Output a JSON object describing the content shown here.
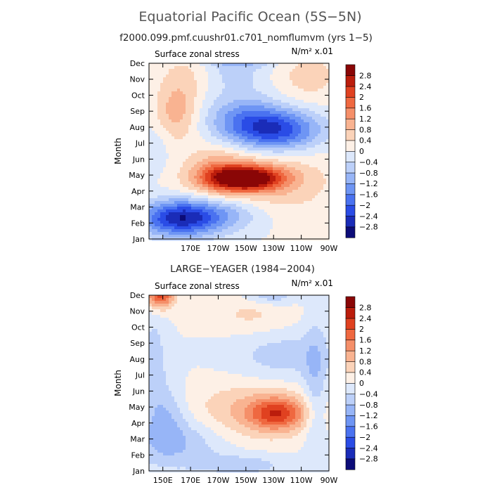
{
  "page": {
    "title": "Equatorial Pacific Ocean (5S−5N)",
    "case_name": "f2000.099.pmf.cuushr01.c701_nomflumvm (yrs 1−5)"
  },
  "palette": {
    "bounds": [
      -2.8,
      -2.4,
      -2,
      -1.6,
      -1.2,
      -0.8,
      -0.4,
      0,
      0.4,
      0.8,
      1.2,
      1.6,
      2,
      2.4,
      2.8
    ],
    "colors": [
      "#0c0c78",
      "#1a2cb8",
      "#2a4ce6",
      "#4a72f0",
      "#6e95f4",
      "#97b5f7",
      "#bcd0f9",
      "#dde8fb",
      "#fdf0e6",
      "#fbd3b9",
      "#f9b391",
      "#f58f69",
      "#ef6840",
      "#e04120",
      "#bb1d0c",
      "#8a0606"
    ],
    "labels": [
      "−2.8",
      "−2.4",
      "−2",
      "−1.6",
      "−1.2",
      "−0.8",
      "−0.4",
      "0",
      "0.4",
      "0.8",
      "1.2",
      "1.6",
      "2",
      "2.4",
      "2.8"
    ]
  },
  "chart_data": [
    {
      "type": "heatmap",
      "panel_title": "",
      "left_label": "Surface zonal stress",
      "right_label": "N/m² x.01",
      "ylabel": "Month",
      "x_ticks": [
        "",
        "170E",
        "170W",
        "150W",
        "130W",
        "110W",
        "90W"
      ],
      "x_tick_lon": [
        150,
        170,
        190,
        210,
        230,
        250,
        270
      ],
      "y_ticks": [
        "Jan",
        "Feb",
        "Mar",
        "Apr",
        "May",
        "Jun",
        "Jul",
        "Aug",
        "Sep",
        "Oct",
        "Nov",
        "Dec"
      ],
      "xlim_lon": [
        140,
        270
      ],
      "features": [
        {
          "lon": 210,
          "month": 3.8,
          "value": 3.1,
          "sx": 19,
          "sy": 0.55
        },
        {
          "lon": 220,
          "month": 3.5,
          "value": 0.8,
          "sx": 38,
          "sy": 1.6
        },
        {
          "lon": 190,
          "month": 4.2,
          "value": 0.8,
          "sx": 14,
          "sy": 1.0
        },
        {
          "lon": 162,
          "month": 1.3,
          "value": -2.6,
          "sx": 20,
          "sy": 0.8
        },
        {
          "lon": 195,
          "month": 1.6,
          "value": -1.0,
          "sx": 22,
          "sy": 0.8
        },
        {
          "lon": 231,
          "month": 6.8,
          "value": -2.3,
          "sx": 23,
          "sy": 0.9
        },
        {
          "lon": 208,
          "month": 7.7,
          "value": -1.0,
          "sx": 20,
          "sy": 1.0
        },
        {
          "lon": 200,
          "month": 10.5,
          "value": -0.6,
          "sx": 18,
          "sy": 1.0
        },
        {
          "lon": 205,
          "month": 11.3,
          "value": -0.9,
          "sx": 20,
          "sy": 0.35
        },
        {
          "lon": 160,
          "month": 8.0,
          "value": 1.0,
          "sx": 11,
          "sy": 1.3
        },
        {
          "lon": 255,
          "month": 10.2,
          "value": 0.6,
          "sx": 18,
          "sy": 1.2
        },
        {
          "lon": 170,
          "month": 10.5,
          "value": 0.5,
          "sx": 15,
          "sy": 1.2
        },
        {
          "lon": 145,
          "month": 5.5,
          "value": -0.35,
          "sx": 8,
          "sy": 1.2
        }
      ]
    },
    {
      "type": "heatmap",
      "panel_title": "LARGE−YEAGER (1984−2004)",
      "left_label": "Surface zonal stress",
      "right_label": "N/m² x.01",
      "ylabel": "Month",
      "x_ticks": [
        "150E",
        "170E",
        "170W",
        "150W",
        "130W",
        "110W",
        "90W"
      ],
      "x_tick_lon": [
        150,
        170,
        190,
        210,
        230,
        250,
        270
      ],
      "y_ticks": [
        "Jan",
        "Feb",
        "Mar",
        "Apr",
        "May",
        "Jun",
        "Jul",
        "Aug",
        "Sep",
        "Oct",
        "Nov",
        "Dec"
      ],
      "xlim_lon": [
        140,
        270
      ],
      "features": [
        {
          "lon": 233,
          "month": 3.6,
          "value": 1.7,
          "sx": 14,
          "sy": 0.7
        },
        {
          "lon": 215,
          "month": 3.7,
          "value": 0.9,
          "sx": 32,
          "sy": 1.3
        },
        {
          "lon": 148,
          "month": 11.0,
          "value": 2.2,
          "sx": 7,
          "sy": 0.6
        },
        {
          "lon": 160,
          "month": 1.8,
          "value": -0.8,
          "sx": 25,
          "sy": 1.2
        },
        {
          "lon": 152,
          "month": 3.5,
          "value": -0.7,
          "sx": 10,
          "sy": 1.5
        },
        {
          "lon": 210,
          "month": 0.4,
          "value": -0.6,
          "sx": 22,
          "sy": 0.5
        },
        {
          "lon": 228,
          "month": 11.0,
          "value": -0.8,
          "sx": 13,
          "sy": 0.45
        },
        {
          "lon": 236,
          "month": 7.2,
          "value": -0.6,
          "sx": 26,
          "sy": 1.2
        },
        {
          "lon": 260,
          "month": 5.0,
          "value": -0.7,
          "sx": 6,
          "sy": 3.2
        },
        {
          "lon": 144,
          "month": 7.0,
          "value": -0.6,
          "sx": 6,
          "sy": 2.2
        },
        {
          "lon": 215,
          "month": 9.8,
          "value": 0.5,
          "sx": 22,
          "sy": 0.9
        }
      ]
    }
  ]
}
